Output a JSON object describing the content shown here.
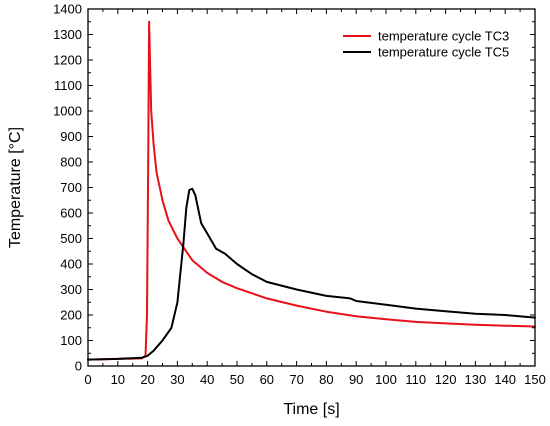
{
  "chart_data": {
    "type": "line",
    "xlabel": "Time [s]",
    "ylabel": "Temperature [°C]",
    "xlim": [
      0,
      150
    ],
    "ylim": [
      0,
      1400
    ],
    "x_ticks": [
      0,
      10,
      20,
      30,
      40,
      50,
      60,
      70,
      80,
      90,
      100,
      110,
      120,
      130,
      140,
      150
    ],
    "y_ticks": [
      0,
      100,
      200,
      300,
      400,
      500,
      600,
      700,
      800,
      900,
      1000,
      1100,
      1200,
      1300,
      1400
    ],
    "grid": false,
    "legend_position": "top-right",
    "series": [
      {
        "name": "temperature cycle TC3",
        "color": "#e8111a",
        "x": [
          0,
          10,
          18,
          19.3,
          19.8,
          20.2,
          20.5,
          20.8,
          21.2,
          22,
          23,
          25,
          27,
          30,
          35,
          40,
          45,
          50,
          60,
          70,
          80,
          90,
          100,
          110,
          120,
          130,
          140,
          150
        ],
        "y": [
          25,
          28,
          30,
          40,
          200,
          800,
          1350,
          1200,
          1000,
          870,
          760,
          650,
          570,
          500,
          415,
          365,
          330,
          305,
          265,
          237,
          213,
          195,
          183,
          173,
          167,
          162,
          158,
          155
        ]
      },
      {
        "name": "temperature cycle TC5",
        "color": "#000000",
        "x": [
          0,
          10,
          18,
          20,
          22,
          25,
          28,
          30,
          32,
          33,
          34,
          35,
          36,
          38,
          40,
          43,
          46,
          50,
          55,
          60,
          70,
          80,
          88,
          90,
          100,
          110,
          120,
          130,
          140,
          150
        ],
        "y": [
          25,
          28,
          32,
          40,
          60,
          100,
          150,
          250,
          480,
          620,
          690,
          695,
          670,
          560,
          520,
          460,
          440,
          400,
          360,
          330,
          300,
          275,
          265,
          255,
          240,
          225,
          215,
          205,
          200,
          190
        ]
      }
    ]
  }
}
